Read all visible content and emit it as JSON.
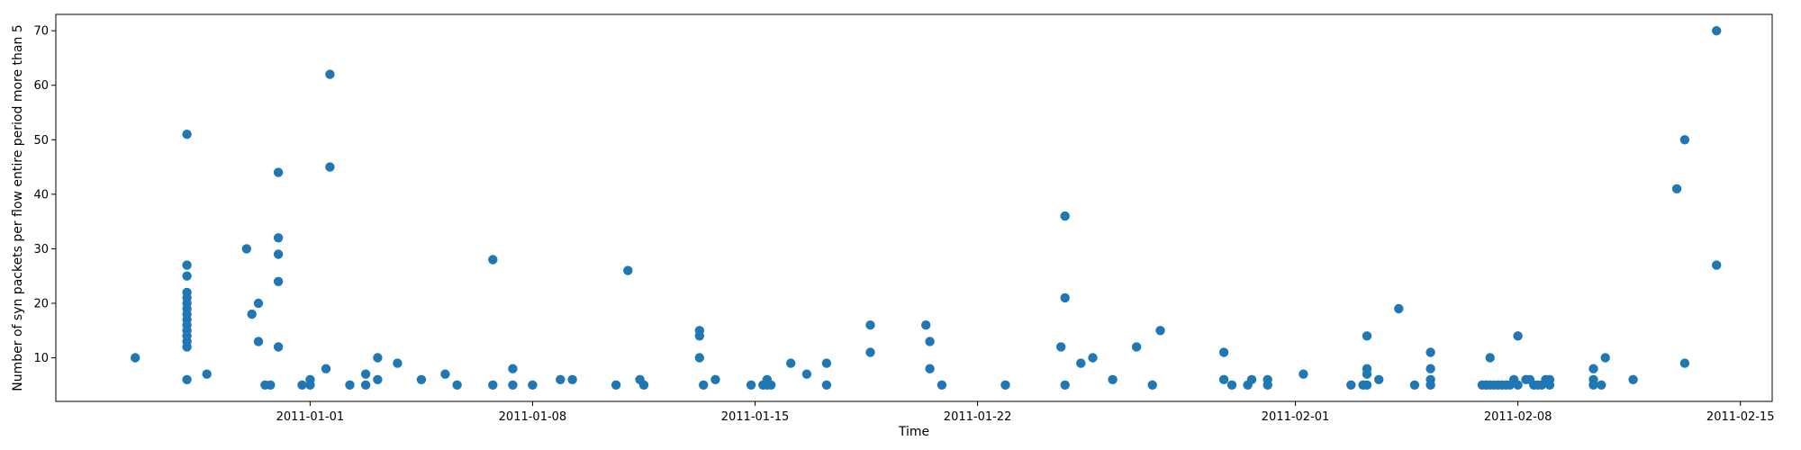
{
  "chart_data": {
    "type": "scatter",
    "title": "",
    "xlabel": "Time",
    "ylabel": "Number of syn packets per flow entire period more than 5",
    "xlim": [
      "2010-12-24",
      "2011-02-16"
    ],
    "ylim": [
      2,
      73
    ],
    "x_ticks": [
      {
        "label": "2011-01-01",
        "x": "2011-01-01"
      },
      {
        "label": "2011-01-08",
        "x": "2011-01-08"
      },
      {
        "label": "2011-01-15",
        "x": "2011-01-15"
      },
      {
        "label": "2011-01-22",
        "x": "2011-01-22"
      },
      {
        "label": "2011-02-01",
        "x": "2011-02-01"
      },
      {
        "label": "2011-02-08",
        "x": "2011-02-08"
      },
      {
        "label": "2011-02-15",
        "x": "2011-02-15"
      }
    ],
    "y_ticks": [
      10,
      20,
      30,
      40,
      50,
      60,
      70
    ],
    "grid": false,
    "marker_color": "#1f77b4",
    "points": [
      {
        "x": "2010-12-26 12:00",
        "y": 10
      },
      {
        "x": "2010-12-28 03:00",
        "y": 51
      },
      {
        "x": "2010-12-28 03:00",
        "y": 27
      },
      {
        "x": "2010-12-28 03:00",
        "y": 25
      },
      {
        "x": "2010-12-28 03:00",
        "y": 22
      },
      {
        "x": "2010-12-28 03:00",
        "y": 21
      },
      {
        "x": "2010-12-28 03:00",
        "y": 20
      },
      {
        "x": "2010-12-28 03:00",
        "y": 19
      },
      {
        "x": "2010-12-28 03:00",
        "y": 18
      },
      {
        "x": "2010-12-28 03:00",
        "y": 17
      },
      {
        "x": "2010-12-28 03:00",
        "y": 16
      },
      {
        "x": "2010-12-28 03:00",
        "y": 15
      },
      {
        "x": "2010-12-28 03:00",
        "y": 14
      },
      {
        "x": "2010-12-28 03:00",
        "y": 13
      },
      {
        "x": "2010-12-28 03:00",
        "y": 12
      },
      {
        "x": "2010-12-28 03:00",
        "y": 6
      },
      {
        "x": "2010-12-28 18:00",
        "y": 7
      },
      {
        "x": "2010-12-30 00:00",
        "y": 30
      },
      {
        "x": "2010-12-30 04:00",
        "y": 18
      },
      {
        "x": "2010-12-30 09:00",
        "y": 20
      },
      {
        "x": "2010-12-30 09:00",
        "y": 13
      },
      {
        "x": "2010-12-30 14:00",
        "y": 5
      },
      {
        "x": "2010-12-30 18:00",
        "y": 5
      },
      {
        "x": "2010-12-31 00:00",
        "y": 44
      },
      {
        "x": "2010-12-31 00:00",
        "y": 32
      },
      {
        "x": "2010-12-31 00:00",
        "y": 29
      },
      {
        "x": "2010-12-31 00:00",
        "y": 24
      },
      {
        "x": "2010-12-31 00:00",
        "y": 12
      },
      {
        "x": "2010-12-31 18:00",
        "y": 5
      },
      {
        "x": "2011-01-01 00:00",
        "y": 6
      },
      {
        "x": "2011-01-01 00:00",
        "y": 5
      },
      {
        "x": "2011-01-01 12:00",
        "y": 8
      },
      {
        "x": "2011-01-01 15:00",
        "y": 62
      },
      {
        "x": "2011-01-01 15:00",
        "y": 45
      },
      {
        "x": "2011-01-02 06:00",
        "y": 5
      },
      {
        "x": "2011-01-02 18:00",
        "y": 5
      },
      {
        "x": "2011-01-02 18:00",
        "y": 7
      },
      {
        "x": "2011-01-03 03:00",
        "y": 10
      },
      {
        "x": "2011-01-03 03:00",
        "y": 6
      },
      {
        "x": "2011-01-03 18:00",
        "y": 9
      },
      {
        "x": "2011-01-04 12:00",
        "y": 6
      },
      {
        "x": "2011-01-05 06:00",
        "y": 7
      },
      {
        "x": "2011-01-05 15:00",
        "y": 5
      },
      {
        "x": "2011-01-06 18:00",
        "y": 28
      },
      {
        "x": "2011-01-06 18:00",
        "y": 5
      },
      {
        "x": "2011-01-07 09:00",
        "y": 8
      },
      {
        "x": "2011-01-07 09:00",
        "y": 5
      },
      {
        "x": "2011-01-08 00:00",
        "y": 5
      },
      {
        "x": "2011-01-08 21:00",
        "y": 6
      },
      {
        "x": "2011-01-09 06:00",
        "y": 6
      },
      {
        "x": "2011-01-10 15:00",
        "y": 5
      },
      {
        "x": "2011-01-11 00:00",
        "y": 26
      },
      {
        "x": "2011-01-11 09:00",
        "y": 6
      },
      {
        "x": "2011-01-11 12:00",
        "y": 5
      },
      {
        "x": "2011-01-13 06:00",
        "y": 15
      },
      {
        "x": "2011-01-13 06:00",
        "y": 14
      },
      {
        "x": "2011-01-13 06:00",
        "y": 10
      },
      {
        "x": "2011-01-13 09:00",
        "y": 5
      },
      {
        "x": "2011-01-13 18:00",
        "y": 6
      },
      {
        "x": "2011-01-14 21:00",
        "y": 5
      },
      {
        "x": "2011-01-15 06:00",
        "y": 5
      },
      {
        "x": "2011-01-15 09:00",
        "y": 6
      },
      {
        "x": "2011-01-15 09:00",
        "y": 5
      },
      {
        "x": "2011-01-15 12:00",
        "y": 5
      },
      {
        "x": "2011-01-16 03:00",
        "y": 9
      },
      {
        "x": "2011-01-16 15:00",
        "y": 7
      },
      {
        "x": "2011-01-17 06:00",
        "y": 9
      },
      {
        "x": "2011-01-17 06:00",
        "y": 5
      },
      {
        "x": "2011-01-18 15:00",
        "y": 16
      },
      {
        "x": "2011-01-18 15:00",
        "y": 11
      },
      {
        "x": "2011-01-20 09:00",
        "y": 16
      },
      {
        "x": "2011-01-20 12:00",
        "y": 13
      },
      {
        "x": "2011-01-20 12:00",
        "y": 8
      },
      {
        "x": "2011-01-20 21:00",
        "y": 5
      },
      {
        "x": "2011-01-22 21:00",
        "y": 5
      },
      {
        "x": "2011-01-24 15:00",
        "y": 12
      },
      {
        "x": "2011-01-24 18:00",
        "y": 36
      },
      {
        "x": "2011-01-24 18:00",
        "y": 21
      },
      {
        "x": "2011-01-24 18:00",
        "y": 5
      },
      {
        "x": "2011-01-25 06:00",
        "y": 9
      },
      {
        "x": "2011-01-25 15:00",
        "y": 10
      },
      {
        "x": "2011-01-26 06:00",
        "y": 6
      },
      {
        "x": "2011-01-27 00:00",
        "y": 12
      },
      {
        "x": "2011-01-27 12:00",
        "y": 5
      },
      {
        "x": "2011-01-27 18:00",
        "y": 15
      },
      {
        "x": "2011-01-29 18:00",
        "y": 11
      },
      {
        "x": "2011-01-29 18:00",
        "y": 6
      },
      {
        "x": "2011-01-30 00:00",
        "y": 5
      },
      {
        "x": "2011-01-30 12:00",
        "y": 5
      },
      {
        "x": "2011-01-30 15:00",
        "y": 6
      },
      {
        "x": "2011-01-31 03:00",
        "y": 6
      },
      {
        "x": "2011-01-31 03:00",
        "y": 5
      },
      {
        "x": "2011-02-01 06:00",
        "y": 7
      },
      {
        "x": "2011-02-02 18:00",
        "y": 5
      },
      {
        "x": "2011-02-03 06:00",
        "y": 14
      },
      {
        "x": "2011-02-03 06:00",
        "y": 8
      },
      {
        "x": "2011-02-03 06:00",
        "y": 7
      },
      {
        "x": "2011-02-03 06:00",
        "y": 5
      },
      {
        "x": "2011-02-03 03:00",
        "y": 5
      },
      {
        "x": "2011-02-03 15:00",
        "y": 6
      },
      {
        "x": "2011-02-04 06:00",
        "y": 19
      },
      {
        "x": "2011-02-04 18:00",
        "y": 5
      },
      {
        "x": "2011-02-05 06:00",
        "y": 11
      },
      {
        "x": "2011-02-05 06:00",
        "y": 8
      },
      {
        "x": "2011-02-05 06:00",
        "y": 6
      },
      {
        "x": "2011-02-05 06:00",
        "y": 5
      },
      {
        "x": "2011-02-06 21:00",
        "y": 5
      },
      {
        "x": "2011-02-07 00:00",
        "y": 5
      },
      {
        "x": "2011-02-07 03:00",
        "y": 10
      },
      {
        "x": "2011-02-07 03:00",
        "y": 5
      },
      {
        "x": "2011-02-07 06:00",
        "y": 5
      },
      {
        "x": "2011-02-07 09:00",
        "y": 5
      },
      {
        "x": "2011-02-07 12:00",
        "y": 5
      },
      {
        "x": "2011-02-07 15:00",
        "y": 5
      },
      {
        "x": "2011-02-07 18:00",
        "y": 5
      },
      {
        "x": "2011-02-07 21:00",
        "y": 6
      },
      {
        "x": "2011-02-08 00:00",
        "y": 14
      },
      {
        "x": "2011-02-08 00:00",
        "y": 5
      },
      {
        "x": "2011-02-08 06:00",
        "y": 6
      },
      {
        "x": "2011-02-08 09:00",
        "y": 6
      },
      {
        "x": "2011-02-08 12:00",
        "y": 5
      },
      {
        "x": "2011-02-08 15:00",
        "y": 5
      },
      {
        "x": "2011-02-08 18:00",
        "y": 5
      },
      {
        "x": "2011-02-08 21:00",
        "y": 6
      },
      {
        "x": "2011-02-09 00:00",
        "y": 6
      },
      {
        "x": "2011-02-09 00:00",
        "y": 5
      },
      {
        "x": "2011-02-10 09:00",
        "y": 8
      },
      {
        "x": "2011-02-10 09:00",
        "y": 6
      },
      {
        "x": "2011-02-10 09:00",
        "y": 5
      },
      {
        "x": "2011-02-10 15:00",
        "y": 5
      },
      {
        "x": "2011-02-10 18:00",
        "y": 10
      },
      {
        "x": "2011-02-11 15:00",
        "y": 6
      },
      {
        "x": "2011-02-13 00:00",
        "y": 41
      },
      {
        "x": "2011-02-13 06:00",
        "y": 50
      },
      {
        "x": "2011-02-13 06:00",
        "y": 9
      },
      {
        "x": "2011-02-14 06:00",
        "y": 70
      },
      {
        "x": "2011-02-14 06:00",
        "y": 27
      }
    ]
  }
}
